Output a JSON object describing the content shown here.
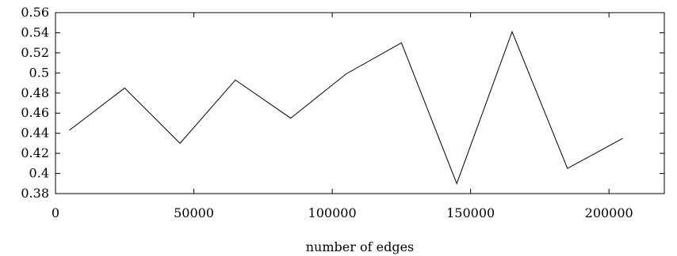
{
  "chart_data": {
    "type": "line",
    "title": "",
    "xlabel": "number of edges",
    "ylabel": "",
    "xlim": [
      0,
      220000
    ],
    "ylim": [
      0.38,
      0.56
    ],
    "x_ticks": [
      "0",
      "50000",
      "100000",
      "150000",
      "200000"
    ],
    "x_tick_values": [
      0,
      50000,
      100000,
      150000,
      200000
    ],
    "y_ticks": [
      "0.38",
      "0.4",
      "0.42",
      "0.44",
      "0.46",
      "0.48",
      "0.5",
      "0.52",
      "0.54",
      "0.56"
    ],
    "y_tick_values": [
      0.38,
      0.4,
      0.42,
      0.44,
      0.46,
      0.48,
      0.5,
      0.52,
      0.54,
      0.56
    ],
    "grid": false,
    "legend": "none",
    "colors": {
      "line": "#000000",
      "axes": "#000000",
      "background": "#ffffff"
    },
    "series": [
      {
        "x": [
          5000,
          25000,
          45000,
          65000,
          85000,
          105000,
          125000,
          145000,
          165000,
          185000,
          205000
        ],
        "y": [
          0.443,
          0.485,
          0.43,
          0.493,
          0.455,
          0.499,
          0.53,
          0.39,
          0.541,
          0.405,
          0.435
        ]
      }
    ]
  }
}
